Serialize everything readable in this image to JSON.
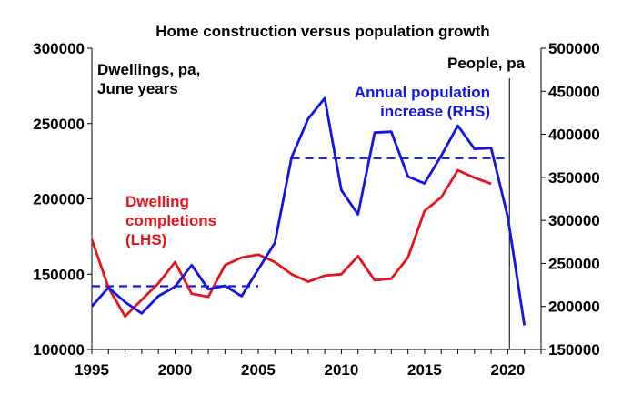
{
  "chart_data": {
    "type": "line",
    "title": "Home construction versus population growth",
    "x": [
      1995,
      1996,
      1997,
      1998,
      1999,
      2000,
      2001,
      2002,
      2003,
      2004,
      2005,
      2006,
      2007,
      2008,
      2009,
      2010,
      2011,
      2012,
      2013,
      2014,
      2015,
      2016,
      2017,
      2018,
      2019,
      2020,
      2021
    ],
    "xlim": [
      1995,
      2022
    ],
    "x_ticks": [
      "1995",
      "2000",
      "2005",
      "2010",
      "2015",
      "2020"
    ],
    "left_axis": {
      "label_lines": [
        "Dwellings, pa,",
        "June years"
      ],
      "ylim": [
        100000,
        300000
      ],
      "ticks": [
        "100000",
        "150000",
        "200000",
        "250000",
        "300000"
      ]
    },
    "right_axis": {
      "label": "People, pa",
      "ylim": [
        150000,
        500000
      ],
      "ticks": [
        "150000",
        "200000",
        "250000",
        "300000",
        "350000",
        "400000",
        "450000",
        "500000"
      ]
    },
    "series": [
      {
        "name_lines": [
          "Dwelling",
          "completions",
          "(LHS)"
        ],
        "axis": "left",
        "color": "#e8141c",
        "x": [
          1995,
          1996,
          1997,
          1998,
          1999,
          2000,
          2001,
          2002,
          2003,
          2004,
          2005,
          2006,
          2007,
          2008,
          2009,
          2010,
          2011,
          2012,
          2013,
          2014,
          2015,
          2016,
          2017,
          2018,
          2019
        ],
        "values": [
          173000,
          141000,
          122000,
          133000,
          144000,
          158000,
          137000,
          135000,
          156000,
          161000,
          163000,
          158000,
          150000,
          145000,
          149000,
          150000,
          162000,
          146000,
          147000,
          161000,
          192000,
          201000,
          219000,
          214000,
          210000
        ]
      },
      {
        "name_lines": [
          "Annual population",
          "increase (RHS)"
        ],
        "axis": "right",
        "color": "#1414e6",
        "x": [
          1995,
          1996,
          1997,
          1998,
          1999,
          2000,
          2001,
          2002,
          2003,
          2004,
          2005,
          2006,
          2007,
          2008,
          2009,
          2010,
          2011,
          2012,
          2013,
          2014,
          2015,
          2016,
          2017,
          2018,
          2019,
          2020,
          2021
        ],
        "values": [
          200000,
          222000,
          205000,
          192000,
          212000,
          223000,
          248000,
          220000,
          224000,
          212000,
          243000,
          274000,
          373000,
          418000,
          442000,
          335000,
          307000,
          402000,
          403000,
          351000,
          343000,
          375000,
          410000,
          383000,
          384000,
          304000,
          178000
        ]
      }
    ],
    "averages": [
      {
        "axis": "left",
        "color": "#1414e6",
        "x": [
          1995,
          2005
        ],
        "value": 142000
      },
      {
        "axis": "left",
        "color": "#1414e6",
        "x": [
          2007,
          2020
        ],
        "value": 227000
      }
    ],
    "marker_line": {
      "x": 2020.1
    }
  }
}
